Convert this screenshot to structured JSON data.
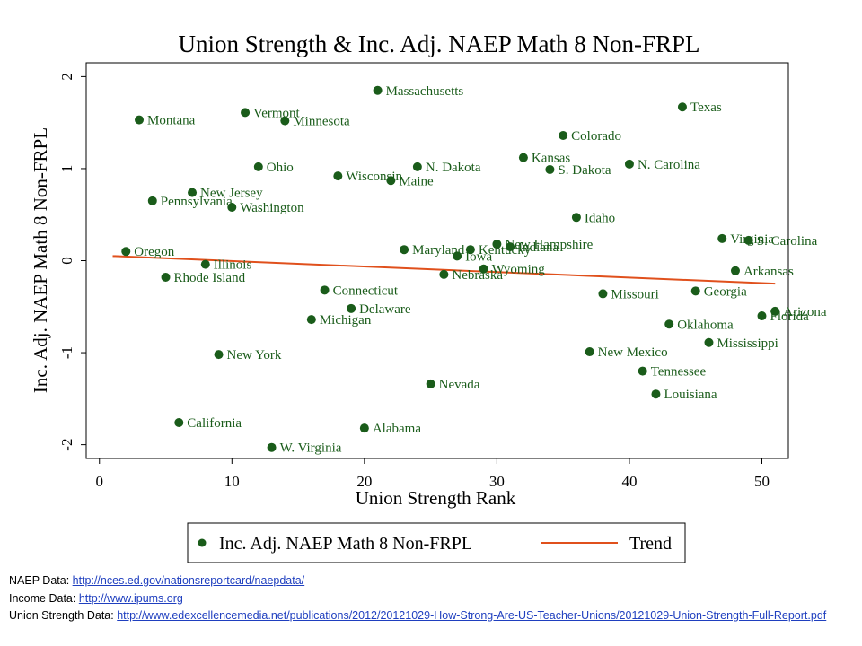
{
  "chart_data": {
    "type": "scatter",
    "title": "Union Strength & Inc. Adj. NAEP Math 8 Non-FRPL",
    "xlabel": "Union Strength Rank",
    "ylabel": "Inc. Adj. NAEP Math 8 Non-FRPL",
    "xlim": [
      -1,
      52
    ],
    "ylim": [
      -2.15,
      2.15
    ],
    "xticks": [
      "0",
      "10",
      "20",
      "30",
      "40",
      "50"
    ],
    "yticks": [
      "-2",
      "-1",
      "0",
      "1",
      "2"
    ],
    "series_name": "Inc. Adj. NAEP Math 8 Non-FRPL",
    "trend_name": "Trend",
    "trend": {
      "x": [
        1,
        51
      ],
      "y": [
        0.05,
        -0.25
      ]
    },
    "marker_color": "#1a5c1a",
    "trend_color": "#e0501c",
    "points": [
      {
        "label": "Massachusetts",
        "x": 21,
        "y": 1.85
      },
      {
        "label": "Texas",
        "x": 44,
        "y": 1.67
      },
      {
        "label": "Vermont",
        "x": 11,
        "y": 1.61
      },
      {
        "label": "Montana",
        "x": 3,
        "y": 1.53
      },
      {
        "label": "Minnesota",
        "x": 14,
        "y": 1.52
      },
      {
        "label": "Colorado",
        "x": 35,
        "y": 1.36
      },
      {
        "label": "Kansas",
        "x": 32,
        "y": 1.12
      },
      {
        "label": "N. Carolina",
        "x": 40,
        "y": 1.05
      },
      {
        "label": "Ohio",
        "x": 12,
        "y": 1.02
      },
      {
        "label": "N. Dakota",
        "x": 24,
        "y": 1.02
      },
      {
        "label": "S. Dakota",
        "x": 34,
        "y": 0.99
      },
      {
        "label": "Wisconsin",
        "x": 18,
        "y": 0.92
      },
      {
        "label": "Maine",
        "x": 22,
        "y": 0.87
      },
      {
        "label": "New Jersey",
        "x": 7,
        "y": 0.74
      },
      {
        "label": "Pennsylvania",
        "x": 4,
        "y": 0.65
      },
      {
        "label": "Washington",
        "x": 10,
        "y": 0.58
      },
      {
        "label": "Idaho",
        "x": 36,
        "y": 0.47
      },
      {
        "label": "Virginia",
        "x": 47,
        "y": 0.24
      },
      {
        "label": "S. Carolina",
        "x": 49,
        "y": 0.22
      },
      {
        "label": "New Hampshire",
        "x": 30,
        "y": 0.18
      },
      {
        "label": "Indiana",
        "x": 31,
        "y": 0.15
      },
      {
        "label": "Maryland",
        "x": 23,
        "y": 0.12
      },
      {
        "label": "Kentucky",
        "x": 28,
        "y": 0.12
      },
      {
        "label": "Oregon",
        "x": 2,
        "y": 0.1
      },
      {
        "label": "Iowa",
        "x": 27,
        "y": 0.05
      },
      {
        "label": "Illinois",
        "x": 8,
        "y": -0.04
      },
      {
        "label": "Wyoming",
        "x": 29,
        "y": -0.09
      },
      {
        "label": "Arkansas",
        "x": 48,
        "y": -0.11
      },
      {
        "label": "Nebraska",
        "x": 26,
        "y": -0.15
      },
      {
        "label": "Rhode Island",
        "x": 5,
        "y": -0.18
      },
      {
        "label": "Connecticut",
        "x": 17,
        "y": -0.32
      },
      {
        "label": "Georgia",
        "x": 45,
        "y": -0.33
      },
      {
        "label": "Missouri",
        "x": 38,
        "y": -0.36
      },
      {
        "label": "Delaware",
        "x": 19,
        "y": -0.52
      },
      {
        "label": "Arizona",
        "x": 51,
        "y": -0.55
      },
      {
        "label": "Florida",
        "x": 50,
        "y": -0.6
      },
      {
        "label": "Michigan",
        "x": 16,
        "y": -0.64
      },
      {
        "label": "Oklahoma",
        "x": 43,
        "y": -0.69
      },
      {
        "label": "Mississippi",
        "x": 46,
        "y": -0.89
      },
      {
        "label": "New Mexico",
        "x": 37,
        "y": -0.99
      },
      {
        "label": "New York",
        "x": 9,
        "y": -1.02
      },
      {
        "label": "Tennessee",
        "x": 41,
        "y": -1.2
      },
      {
        "label": "Nevada",
        "x": 25,
        "y": -1.34
      },
      {
        "label": "Louisiana",
        "x": 42,
        "y": -1.45
      },
      {
        "label": "California",
        "x": 6,
        "y": -1.76
      },
      {
        "label": "Alabama",
        "x": 20,
        "y": -1.82
      },
      {
        "label": "W. Virginia",
        "x": 13,
        "y": -2.03
      }
    ]
  },
  "sources": {
    "naep_label": "NAEP Data: ",
    "naep_url": "http://nces.ed.gov/nationsreportcard/naepdata/",
    "income_label": "Income Data: ",
    "income_url": "http://www.ipums.org",
    "union_label": "Union Strength Data: ",
    "union_url": "http://www.edexcellencemedia.net/publications/2012/20121029-How-Strong-Are-US-Teacher-Unions/20121029-Union-Strength-Full-Report.pdf"
  }
}
